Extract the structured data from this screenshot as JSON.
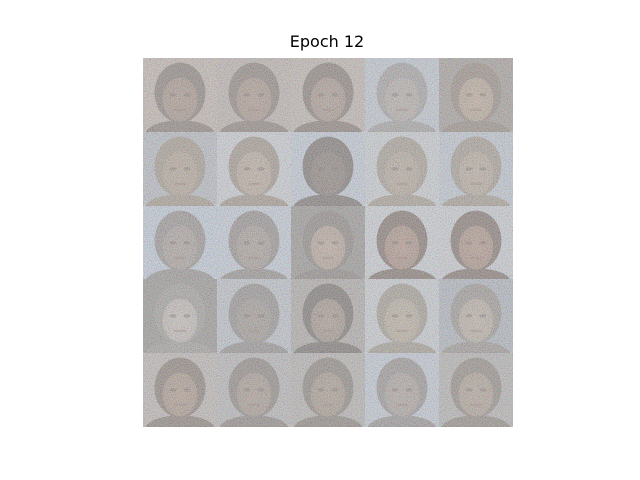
{
  "figure": {
    "title": "Epoch 12"
  },
  "grid": {
    "rows": 5,
    "cols": 5,
    "tiles": [
      {
        "bg": "#b9a8a0",
        "face": "#9c7f70",
        "hair": "#6a5b55"
      },
      {
        "bg": "#b0a39d",
        "face": "#a08272",
        "hair": "#6e5f58"
      },
      {
        "bg": "#b5a7a0",
        "face": "#9e8476",
        "hair": "#67574f"
      },
      {
        "bg": "#b6c0d0",
        "face": "#a99e97",
        "hair": "#8e8a8c"
      },
      {
        "bg": "#8e8581",
        "face": "#b69c84",
        "hair": "#7b6b60"
      },
      {
        "bg": "#a9aebb",
        "face": "#a8927f",
        "hair": "#8f8070"
      },
      {
        "bg": "#c5cad3",
        "face": "#b29c8a",
        "hair": "#8a7a6d"
      },
      {
        "bg": "#b8c4d8",
        "face": "#6d5c55",
        "hair": "#544a48"
      },
      {
        "bg": "#c4c9d2",
        "face": "#a89685",
        "hair": "#918576"
      },
      {
        "bg": "#b4bfd0",
        "face": "#ae9a88",
        "hair": "#8f8376"
      },
      {
        "bg": "#b7c6dc",
        "face": "#9b8c85",
        "hair": "#7d7575"
      },
      {
        "bg": "#bac6d9",
        "face": "#97887f",
        "hair": "#797170"
      },
      {
        "bg": "#7d7977",
        "face": "#b69785",
        "hair": "#6c625e"
      },
      {
        "bg": "#c6cbd4",
        "face": "#a57e6c",
        "hair": "#5e4a42"
      },
      {
        "bg": "#c3c8d1",
        "face": "#a7806e",
        "hair": "#5f4b44"
      },
      {
        "bg": "#7c7876",
        "face": "#c1b6b0",
        "hair": "#8a8582"
      },
      {
        "bg": "#b1b8c5",
        "face": "#8b7f79",
        "hair": "#777273"
      },
      {
        "bg": "#9d9795",
        "face": "#9a8275",
        "hair": "#4f4744"
      },
      {
        "bg": "#c2c7d0",
        "face": "#b2a18d",
        "hair": "#8c8376"
      },
      {
        "bg": "#9ea6b4",
        "face": "#b5a595",
        "hair": "#827b77"
      },
      {
        "bg": "#b1a9a6",
        "face": "#a38572",
        "hair": "#6a5a50"
      },
      {
        "bg": "#a9a8ab",
        "face": "#998576",
        "hair": "#6e6460"
      },
      {
        "bg": "#a7a2a0",
        "face": "#9a8472",
        "hair": "#6b6058"
      },
      {
        "bg": "#b8c3d5",
        "face": "#9f9189",
        "hair": "#7c7676"
      },
      {
        "bg": "#a6a3a3",
        "face": "#a6907f",
        "hair": "#736860"
      }
    ]
  }
}
